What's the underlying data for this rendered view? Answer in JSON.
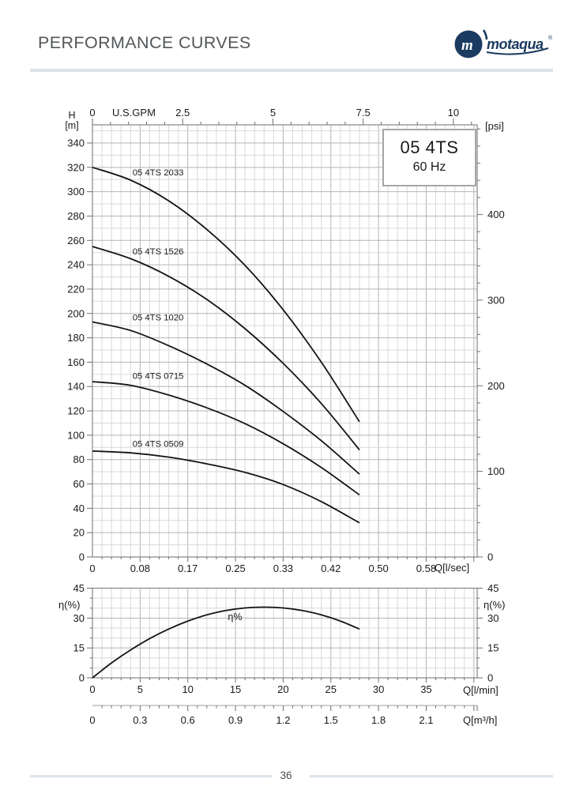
{
  "header": {
    "title": "PERFORMANCE CURVES",
    "logo_text": "motaqua",
    "logo_mark": "m",
    "logo_reg": "®"
  },
  "model_box": {
    "line1": "05 4TS",
    "line2": "60 Hz"
  },
  "footer": {
    "page_number": "36"
  },
  "chart_data": [
    {
      "type": "line",
      "title": "05 4TS 60 Hz head vs flow curves",
      "axes": {
        "top": {
          "label": "U.S.GPM",
          "ticks": [
            0,
            2.5,
            5,
            7.5,
            10
          ],
          "tick_labels": [
            "0",
            "2.5",
            "5",
            "7.5",
            "10"
          ],
          "minor_step_gpm": 0.5,
          "gpm_to_lmin": 3.7854
        },
        "bottom": {
          "label": "Q[l/sec]",
          "ticks_lmin": [
            0,
            5,
            10,
            15,
            20,
            25,
            30,
            35
          ],
          "tick_labels": [
            "0",
            "0.08",
            "0.17",
            "0.25",
            "0.33",
            "0.42",
            "0.50",
            "0.58"
          ]
        },
        "left": {
          "label": "H",
          "unit": "[m]",
          "min": 0,
          "max": 355,
          "major_step": 20,
          "minor_step": 10,
          "max_labeled": 340
        },
        "right": {
          "label": "[psi]",
          "ticks": [
            0,
            100,
            200,
            300,
            400
          ],
          "tick_labels": [
            "0",
            "100",
            "200",
            "300",
            "400"
          ],
          "minor_step_psi": 20,
          "minor_max_psi": 500,
          "m_per_psi": 0.7031
        }
      },
      "grid": {
        "minor_x_lmin": 1,
        "major_x_lmin": 5,
        "on": true
      },
      "series": [
        {
          "name": "05 4TS 2033",
          "label_at": [
            4.2,
            316
          ],
          "points": [
            [
              0,
              320
            ],
            [
              4,
              309.5
            ],
            [
              8,
              292.5
            ],
            [
              12,
              269
            ],
            [
              16,
              239.5
            ],
            [
              20,
              203
            ],
            [
              24,
              160
            ],
            [
              28,
              111
            ]
          ]
        },
        {
          "name": "05 4TS 1526",
          "label_at": [
            4.2,
            251
          ],
          "points": [
            [
              0,
              255
            ],
            [
              4,
              245
            ],
            [
              8,
              230.5
            ],
            [
              12,
              211.5
            ],
            [
              16,
              187.5
            ],
            [
              20,
              159
            ],
            [
              24,
              126
            ],
            [
              28,
              88
            ]
          ]
        },
        {
          "name": "05 4TS 1020",
          "label_at": [
            4.2,
            197
          ],
          "points": [
            [
              0,
              193
            ],
            [
              4,
              186
            ],
            [
              8,
              173.5
            ],
            [
              12,
              158.5
            ],
            [
              16,
              141
            ],
            [
              20,
              119.5
            ],
            [
              24,
              95.5
            ],
            [
              28,
              68
            ]
          ]
        },
        {
          "name": "05 4TS 0715",
          "label_at": [
            4.2,
            149
          ],
          "points": [
            [
              0,
              144
            ],
            [
              4,
              141
            ],
            [
              8,
              133
            ],
            [
              12,
              122.5
            ],
            [
              16,
              109.5
            ],
            [
              20,
              93
            ],
            [
              24,
              73.5
            ],
            [
              28,
              51
            ]
          ]
        },
        {
          "name": "05 4TS 0509",
          "label_at": [
            4.2,
            93
          ],
          "points": [
            [
              0,
              87
            ],
            [
              4,
              85.5
            ],
            [
              8,
              82
            ],
            [
              12,
              76.5
            ],
            [
              16,
              69.5
            ],
            [
              20,
              59.5
            ],
            [
              24,
              45.5
            ],
            [
              28,
              28
            ]
          ]
        }
      ]
    },
    {
      "type": "line",
      "title": "efficiency curve",
      "axes": {
        "left": {
          "label": "η(%)",
          "ticks": [
            0,
            15,
            30,
            45
          ],
          "tick_labels": [
            "0",
            "15",
            "30",
            "45"
          ],
          "minor_step": 5
        },
        "right": {
          "label": "η(%)",
          "ticks": [
            0,
            15,
            30,
            45
          ],
          "tick_labels": [
            "0",
            "15",
            "30",
            "45"
          ]
        },
        "bottom_lmin": {
          "label": "Q[l/min]",
          "ticks": [
            0,
            5,
            10,
            15,
            20,
            25,
            30,
            35
          ],
          "tick_labels": [
            "0",
            "5",
            "10",
            "15",
            "20",
            "25",
            "30",
            "35"
          ]
        },
        "bottom_m3h": {
          "label": "Q[m³/h]",
          "ticks_lmin": [
            0,
            5,
            10,
            15,
            20,
            25,
            30,
            35
          ],
          "tick_labels": [
            "0",
            "0.3",
            "0.6",
            "0.9",
            "1.2",
            "1.5",
            "1.8",
            "2.1"
          ]
        }
      },
      "series": [
        {
          "name": "η%",
          "label_at": [
            14.2,
            30.5
          ],
          "points": [
            [
              0,
              0
            ],
            [
              2,
              7.5
            ],
            [
              4,
              14
            ],
            [
              6,
              19.7
            ],
            [
              8,
              24.5
            ],
            [
              10,
              28.5
            ],
            [
              12,
              31.6
            ],
            [
              14,
              33.8
            ],
            [
              16,
              35.1
            ],
            [
              18,
              35.5
            ],
            [
              20,
              35.1
            ],
            [
              22,
              33.8
            ],
            [
              24,
              31.6
            ],
            [
              26,
              28.5
            ],
            [
              28,
              24.5
            ]
          ]
        }
      ]
    }
  ]
}
